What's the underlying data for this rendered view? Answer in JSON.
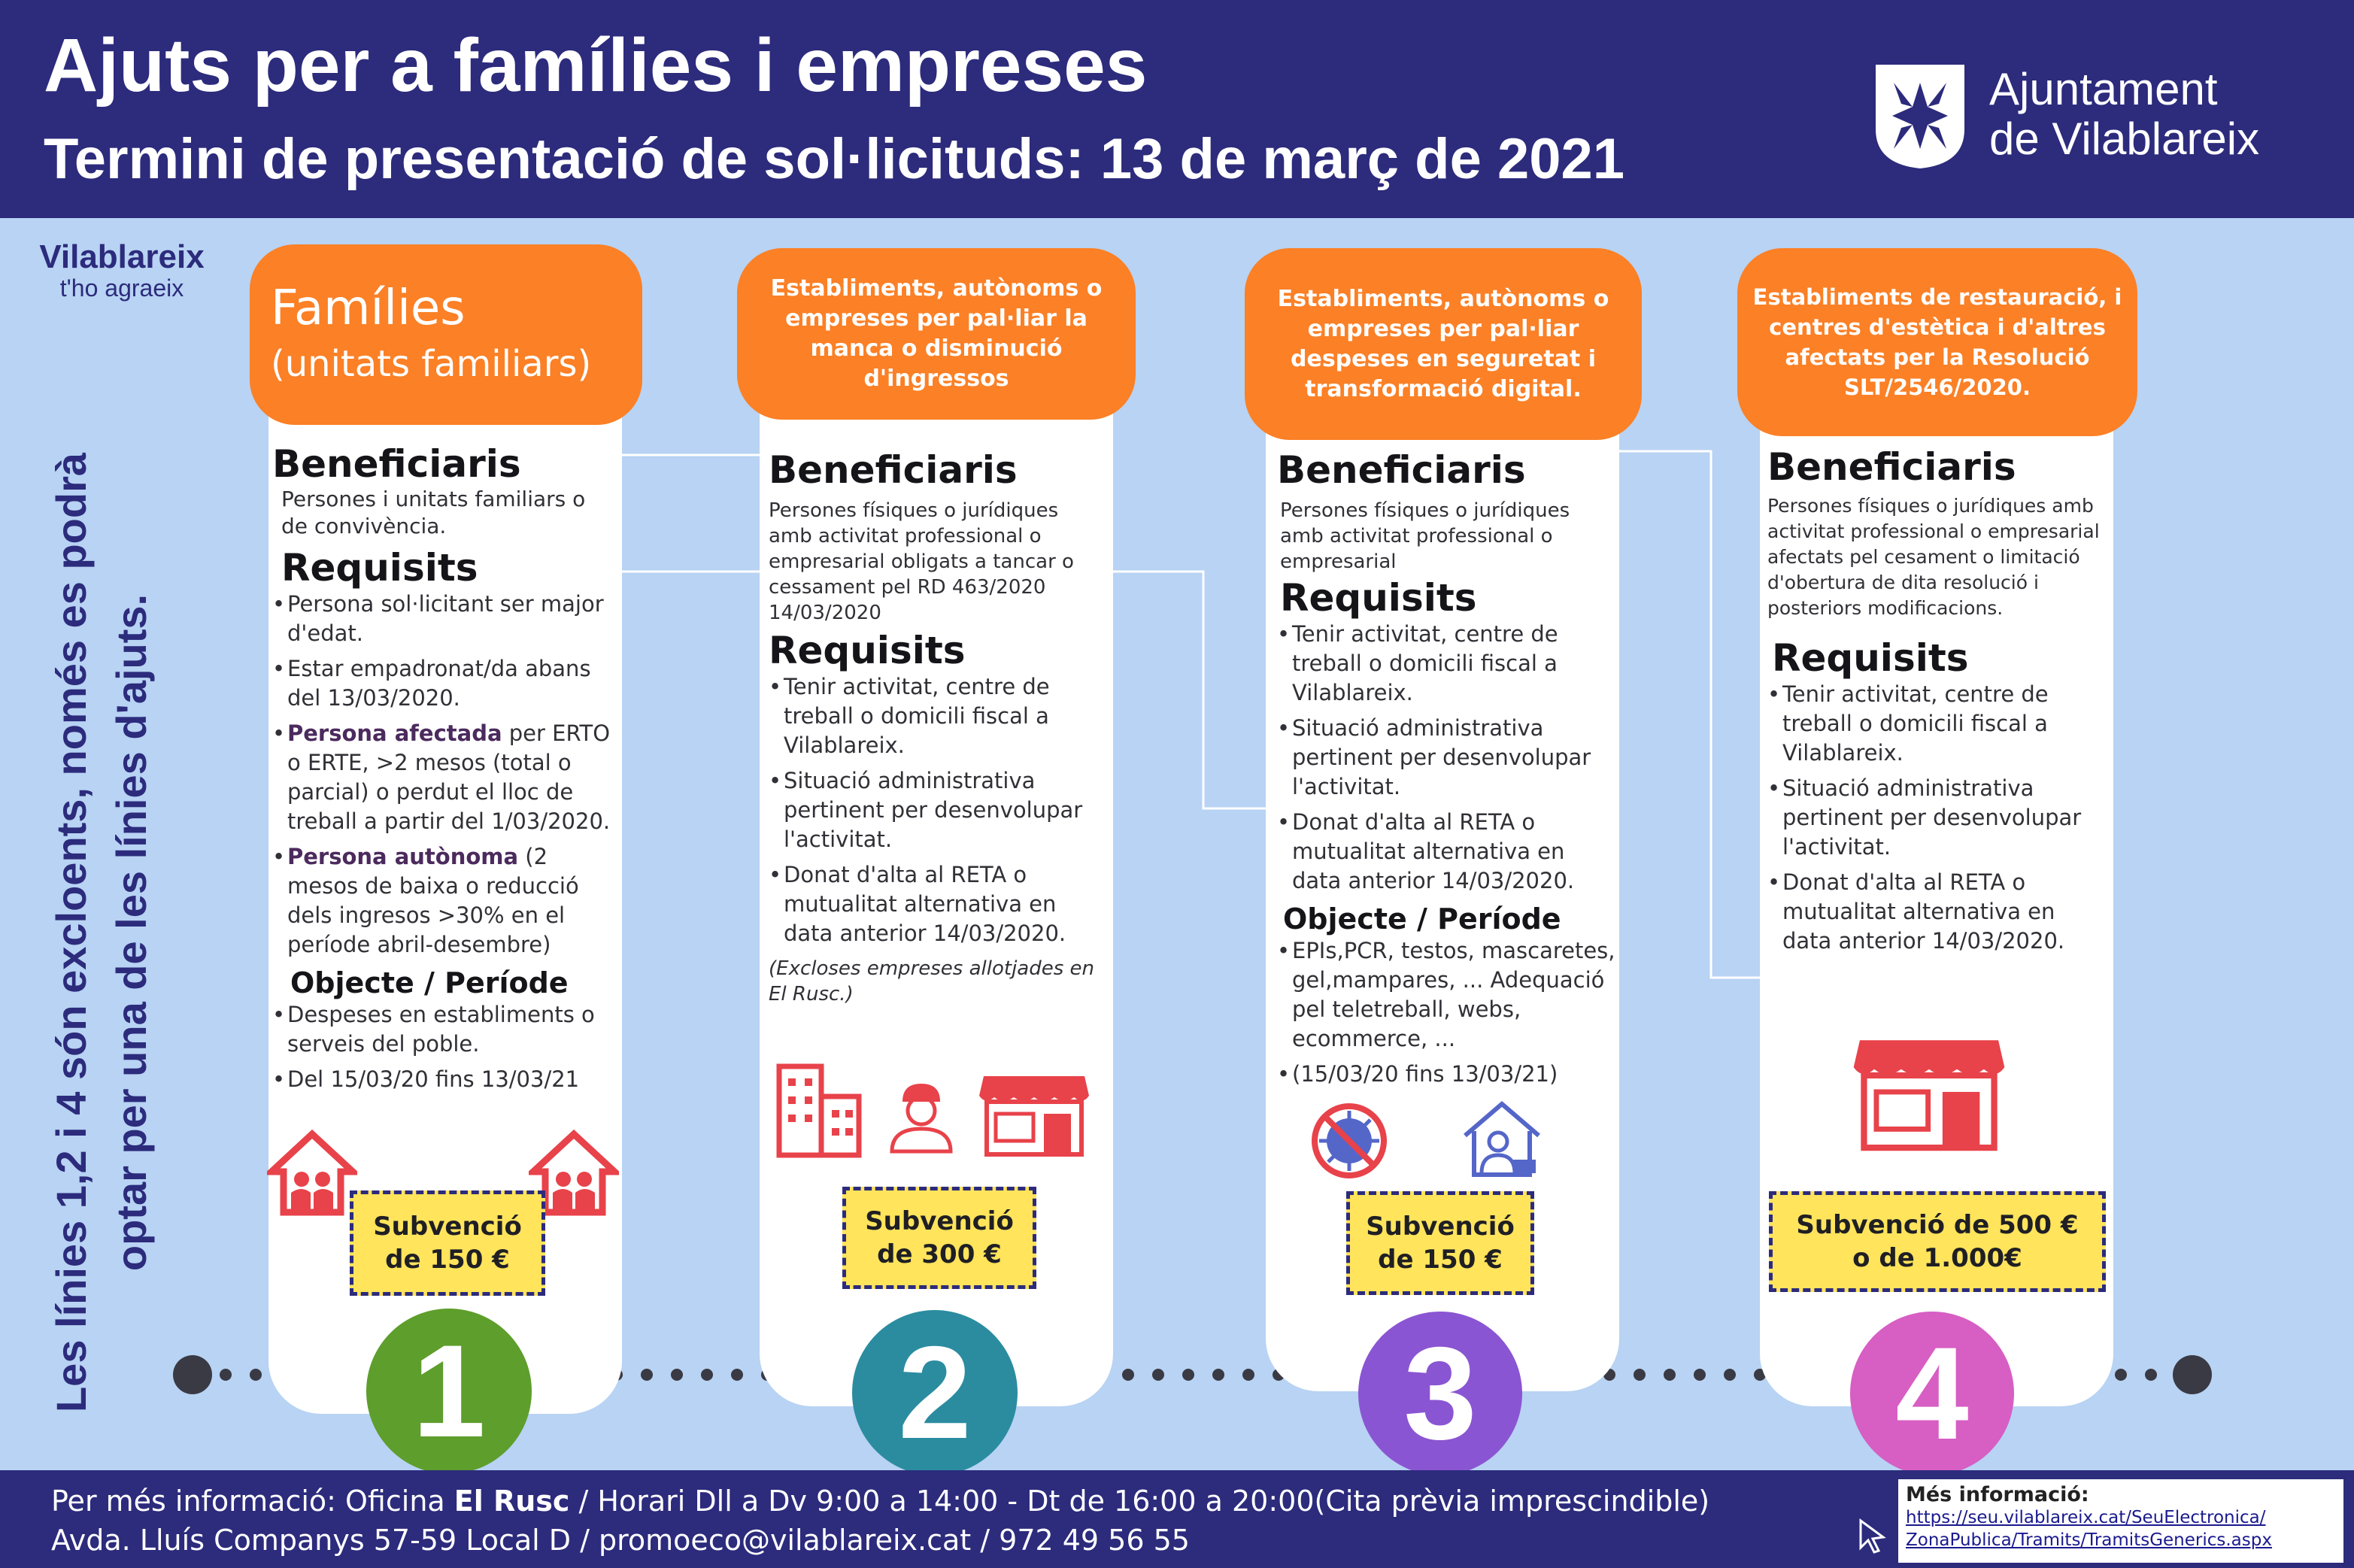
{
  "header": {
    "title": "Ajuts per a famílies i empreses",
    "subtitle": "Termini de presentació de sol·licituds: 13 de març de 2021",
    "org_line1": "Ajuntament",
    "org_line2": "de Vilablareix"
  },
  "brand": {
    "name": "Vilablareix",
    "tagline": "t'ho agraeix"
  },
  "side_note": "Les línies 1,2 i 4 són excloents, només es podrà optar per una de les línies d'ajuts.",
  "colors": {
    "navy": "#2c2b7c",
    "background": "#b8d3f3",
    "orange": "#fb8026",
    "yellow": "#ffe45c",
    "line1": "#5e9e2c",
    "line2": "#2b8ca0",
    "line3": "#8a55d2",
    "line4": "#d75ec3",
    "icon_red": "#e8424a"
  },
  "lines": [
    {
      "number": "1",
      "head_title": "Famílies",
      "head_sub": "(unitats familiars)",
      "beneficiaris_label": "Beneficiaris",
      "beneficiaris_text": "Persones i unitats familiars o de convivència.",
      "requisits_label": "Requisits",
      "requisits": [
        {
          "pre": "",
          "bold": "",
          "post": "Persona sol·licitant ser major d'edat."
        },
        {
          "pre": "",
          "bold": "",
          "post": "Estar empadronat/da abans del 13/03/2020."
        },
        {
          "pre": "",
          "bold": "Persona afectada",
          "post": " per ERTO o ERTE, >2 mesos (total o parcial) o perdut el lloc de treball a partir del 1/03/2020."
        },
        {
          "pre": "",
          "bold": "Persona autònoma",
          "post": " (2 mesos de baixa o reducció dels ingresos >30% en el període abril-desembre)"
        }
      ],
      "objecte_label": "Objecte / Període",
      "objecte": [
        "Despeses en establiments o serveis del poble.",
        "Del 15/03/20 fins 13/03/21"
      ],
      "icons": [
        "house-family-icon",
        "house-family-icon"
      ],
      "subvencio": "Subvenció de 150 €"
    },
    {
      "number": "2",
      "head_text": "Establiments, autònoms o empreses per pal·liar la manca o disminució d'ingressos",
      "beneficiaris_label": "Beneficiaris",
      "beneficiaris_text": "Persones físiques o jurídiques amb activitat professional o empresarial obligats a tancar o cessament pel RD 463/2020 14/03/2020",
      "requisits_label": "Requisits",
      "requisits": [
        "Tenir activitat, centre de treball o domicili fiscal a Vilablareix.",
        "Situació administrativa pertinent per desenvolupar l'activitat.",
        "Donat d'alta al RETA o mutualitat alternativa en data anterior 14/03/2020."
      ],
      "note": "(Excloses empreses allotjades en El Rusc.)",
      "icons": [
        "building-icon",
        "worker-icon",
        "shop-icon"
      ],
      "subvencio": "Subvenció de 300 €"
    },
    {
      "number": "3",
      "head_text": "Establiments, autònoms o empreses per pal·liar despeses en seguretat i transformació digital.",
      "beneficiaris_label": "Beneficiaris",
      "beneficiaris_text": "Persones físiques o jurídiques amb activitat professional o empresarial",
      "requisits_label": "Requisits",
      "requisits": [
        "Tenir activitat, centre de treball o domicili fiscal a Vilablareix.",
        "Situació administrativa pertinent per desenvolupar l'activitat.",
        "Donat d'alta al RETA o mutualitat alternativa en data anterior 14/03/2020."
      ],
      "objecte_label": "Objecte / Període",
      "objecte": [
        "EPIs,PCR, testos, mascaretes, gel,mampares, ... Adequació pel teletreball, webs, ecommerce, ...",
        "(15/03/20 fins 13/03/21)"
      ],
      "icons": [
        "no-virus-icon",
        "telework-icon"
      ],
      "subvencio": "Subvenció de 150 €"
    },
    {
      "number": "4",
      "head_text": "Establiments de restauració, i centres d'estètica i d'altres afectats per la Resolució SLT/2546/2020.",
      "beneficiaris_label": "Beneficiaris",
      "beneficiaris_text": "Persones físiques o jurídiques amb activitat professional o empresarial afectats pel cesament o limitació d'obertura de dita resolució i posteriors modificacions.",
      "requisits_label": "Requisits",
      "requisits": [
        "Tenir activitat, centre de treball o domicili fiscal a Vilablareix.",
        "Situació administrativa pertinent per desenvolupar l'activitat.",
        "Donat d'alta al RETA o mutualitat alternativa en data anterior 14/03/2020."
      ],
      "icons": [
        "shop-icon"
      ],
      "subvencio": "Subvenció de 500 € o de 1.000€"
    }
  ],
  "footer": {
    "line1_pre": "Per més informació: Oficina ",
    "line1_bold": "El Rusc",
    "line1_post": " / Horari Dll a Dv 9:00 a 14:00 - Dt de 16:00 a 20:00(Cita prèvia imprescindible)",
    "line2": "Avda. Lluís Companys 57-59 Local D / promoeco@vilablareix.cat / 972 49 56 55",
    "info_title": "Més informació:",
    "info_link1": "https://seu.vilablareix.cat/SeuElectronica/",
    "info_link2": "ZonaPublica/Tramits/TramitsGenerics.aspx"
  }
}
